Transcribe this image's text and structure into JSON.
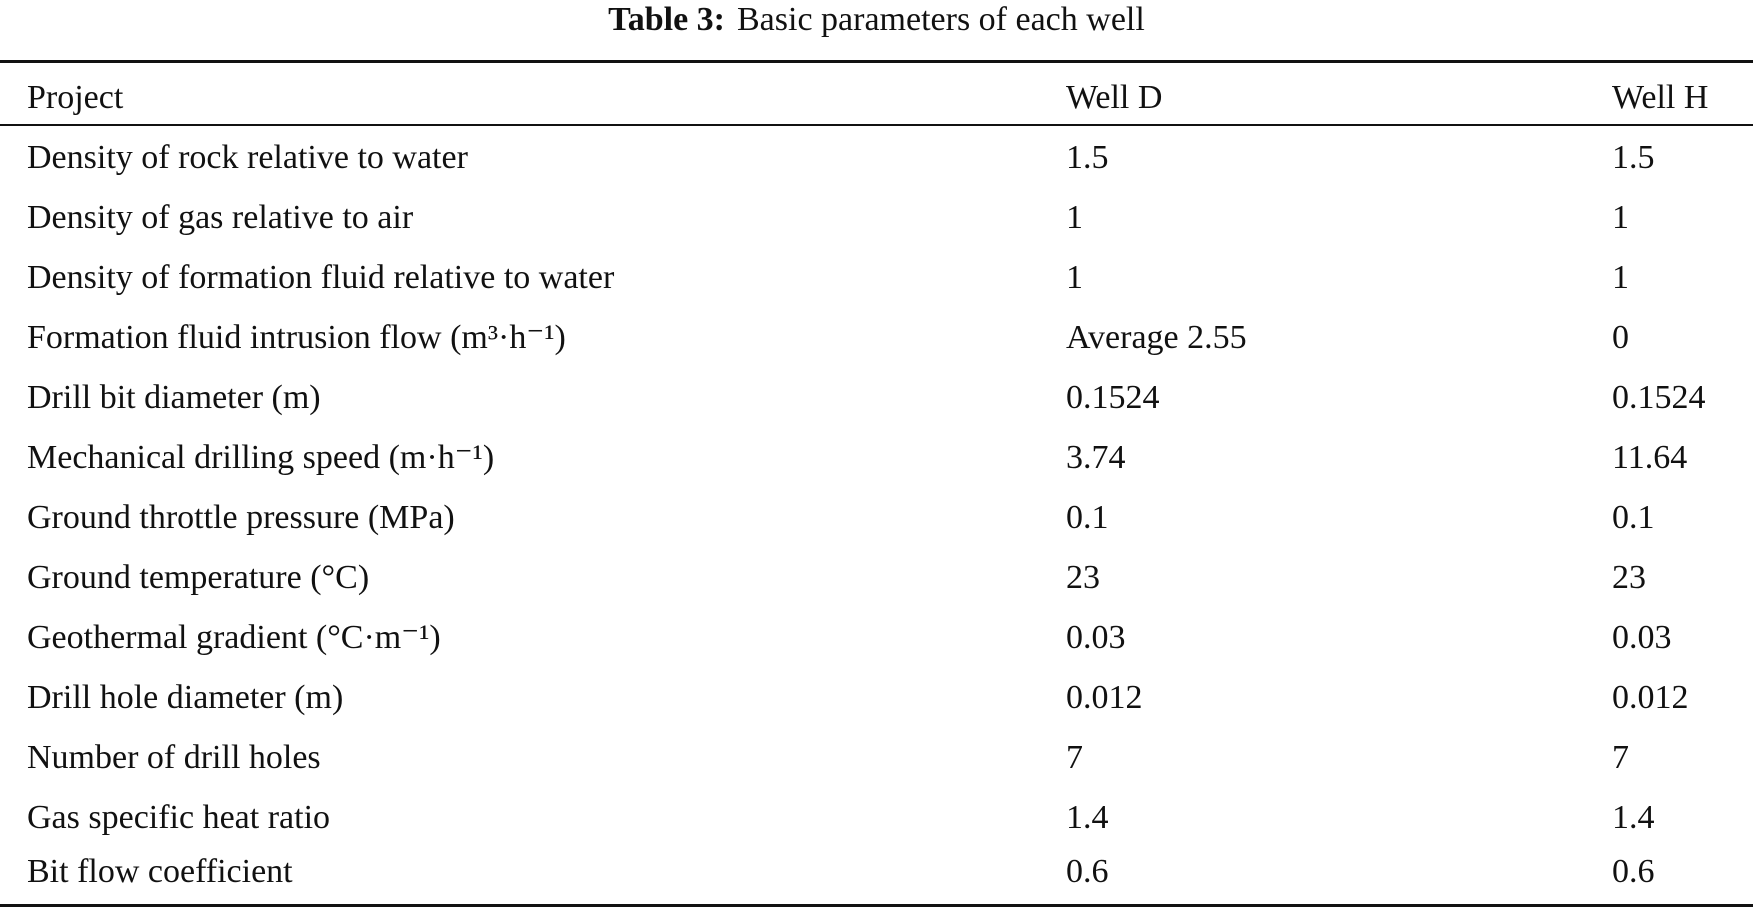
{
  "caption": {
    "label": "Table 3:",
    "text": "Basic parameters of each well"
  },
  "table": {
    "headers": [
      "Project",
      "Well D",
      "Well H"
    ],
    "rows": [
      {
        "project": "Density of rock relative to water",
        "well_d": "1.5",
        "well_h": "1.5"
      },
      {
        "project": "Density of gas relative to air",
        "well_d": "1",
        "well_h": "1"
      },
      {
        "project": "Density of formation fluid relative to water",
        "well_d": "1",
        "well_h": "1"
      },
      {
        "project": "Formation fluid intrusion flow (m³·h⁻¹)",
        "well_d": "Average 2.55",
        "well_h": "0"
      },
      {
        "project": "Drill bit diameter (m)",
        "well_d": "0.1524",
        "well_h": "0.1524"
      },
      {
        "project": "Mechanical drilling speed (m·h⁻¹)",
        "well_d": "3.74",
        "well_h": "11.64"
      },
      {
        "project": "Ground throttle pressure (MPa)",
        "well_d": "0.1",
        "well_h": "0.1"
      },
      {
        "project": "Ground temperature (°C)",
        "well_d": "23",
        "well_h": "23"
      },
      {
        "project": "Geothermal gradient (°C·m⁻¹)",
        "well_d": "0.03",
        "well_h": "0.03"
      },
      {
        "project": "Drill hole diameter (m)",
        "well_d": "0.012",
        "well_h": "0.012"
      },
      {
        "project": "Number of drill holes",
        "well_d": "7",
        "well_h": "7"
      },
      {
        "project": "Gas specific heat ratio",
        "well_d": "1.4",
        "well_h": "1.4"
      },
      {
        "project": "Bit flow coefficient",
        "well_d": "0.6",
        "well_h": "0.6"
      }
    ]
  }
}
